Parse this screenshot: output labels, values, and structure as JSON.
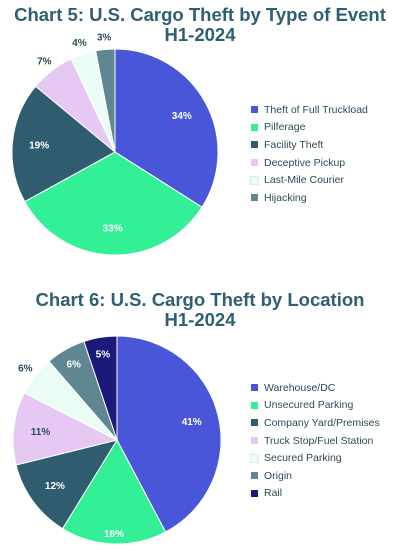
{
  "chart_data": [
    {
      "type": "pie",
      "title": "Chart 5: U.S. Cargo Theft by Type of Event H1-2024",
      "title_lines": [
        "Chart 5: U.S. Cargo Theft by Type of Event",
        "H1-2024"
      ],
      "categories": [
        "Theft of Full Truckload",
        "Pilferage",
        "Facility Theft",
        "Deceptive Pickup",
        "Last-Mile Courier",
        "Hijacking"
      ],
      "values": [
        34,
        33,
        19,
        7,
        4,
        3
      ],
      "labels": [
        "34%",
        "33%",
        "19%",
        "7%",
        "4%",
        "3%"
      ],
      "colors": [
        "#4a56d8",
        "#33ef96",
        "#2f5d6f",
        "#e5c9f3",
        "#eafdf5",
        "#5e8792"
      ],
      "label_colors": [
        "#ffffff",
        "#ffffff",
        "#ffffff",
        "#2d4a57",
        "#2d4a57",
        "#2d4a57"
      ],
      "legend_position": "right"
    },
    {
      "type": "pie",
      "title": "Chart 6: U.S. Cargo Theft by Location H1-2024",
      "title_lines": [
        "Chart 6: U.S. Cargo Theft by Location",
        "H1-2024"
      ],
      "categories": [
        "Warehouse/DC",
        "Unsecured Parking",
        "Company Yard/Premises",
        "Truck Stop/Fuel Station",
        "Secured Parking",
        "Origin",
        "Rail"
      ],
      "values": [
        41,
        16,
        12,
        11,
        6,
        6,
        5
      ],
      "labels": [
        "41%",
        "16%",
        "12%",
        "11%",
        "6%",
        "6%",
        "5%"
      ],
      "colors": [
        "#4a56d8",
        "#33ef96",
        "#2f5d6f",
        "#e5c9f3",
        "#eafdf5",
        "#5e8792",
        "#1b1a7a"
      ],
      "label_colors": [
        "#ffffff",
        "#ffffff",
        "#ffffff",
        "#2d4a57",
        "#2d4a57",
        "#ffffff",
        "#ffffff"
      ],
      "legend_position": "right"
    }
  ]
}
